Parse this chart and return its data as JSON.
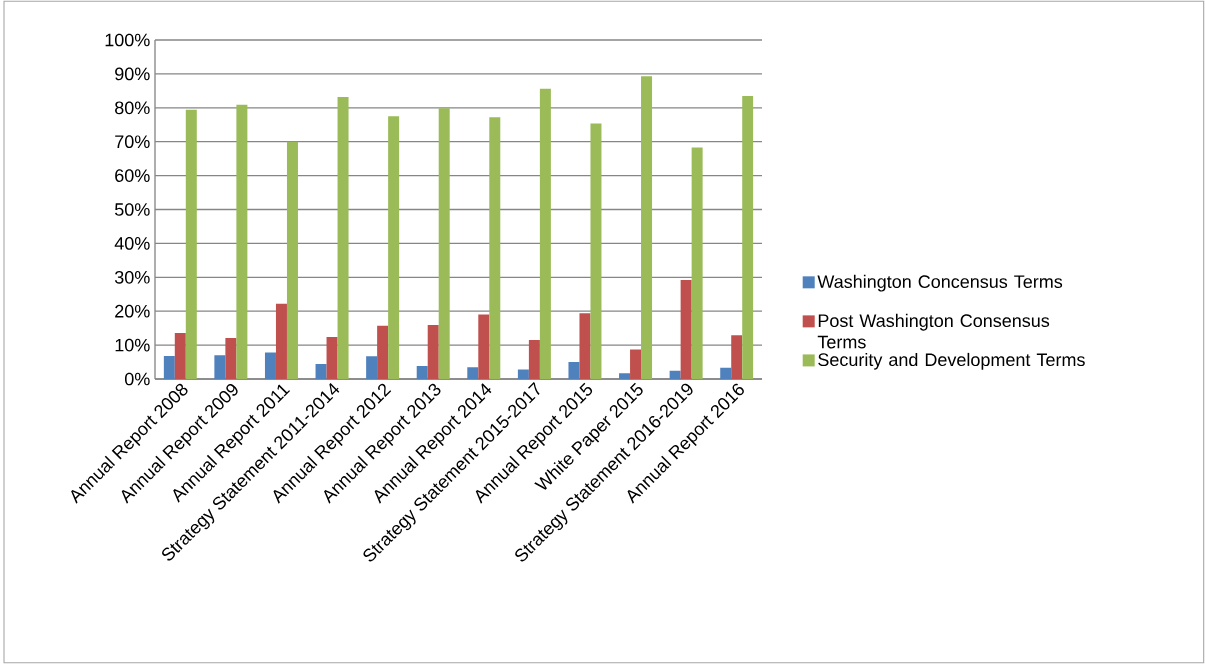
{
  "chart_data": {
    "type": "bar",
    "categories": [
      "Annual Report 2008",
      "Annual Report 2009",
      "Annual Report 2011",
      "Strategy Statement 2011-2014",
      "Annual Report 2012",
      "Annual Report 2013",
      "Annual Report 2014",
      "Strategy Statement 2015-2017",
      "Annual Report 2015",
      "White Paper 2015",
      "Strategy Statement 2016-2019",
      "Annual Report 2016"
    ],
    "series": [
      {
        "name": "Washington Concensus Terms",
        "color": "#4f81bd",
        "values": [
          6.8,
          7.0,
          7.8,
          4.4,
          6.7,
          3.8,
          3.5,
          2.8,
          5.0,
          1.7,
          2.4,
          3.3
        ]
      },
      {
        "name": "Post Washington Consensus Terms",
        "color": "#c0504d",
        "values": [
          13.6,
          12.1,
          22.2,
          12.4,
          15.7,
          15.9,
          19.0,
          11.5,
          19.4,
          8.7,
          29.2,
          12.9
        ]
      },
      {
        "name": "Security and Development Terms",
        "color": "#9bbb59",
        "values": [
          79.4,
          80.9,
          70.0,
          83.2,
          77.5,
          79.9,
          77.2,
          85.6,
          75.4,
          89.3,
          68.3,
          83.5
        ]
      }
    ],
    "ylim": [
      0,
      100
    ],
    "yticks": [
      {
        "value": 0,
        "label": "0%"
      },
      {
        "value": 10,
        "label": "10%"
      },
      {
        "value": 20,
        "label": "20%"
      },
      {
        "value": 30,
        "label": "30%"
      },
      {
        "value": 40,
        "label": "40%"
      },
      {
        "value": 50,
        "label": "50%"
      },
      {
        "value": 60,
        "label": "60%"
      },
      {
        "value": 70,
        "label": "70%"
      },
      {
        "value": 80,
        "label": "80%"
      },
      {
        "value": 90,
        "label": "90%"
      },
      {
        "value": 100,
        "label": "100%"
      }
    ],
    "grid": "y",
    "legend": "right"
  }
}
